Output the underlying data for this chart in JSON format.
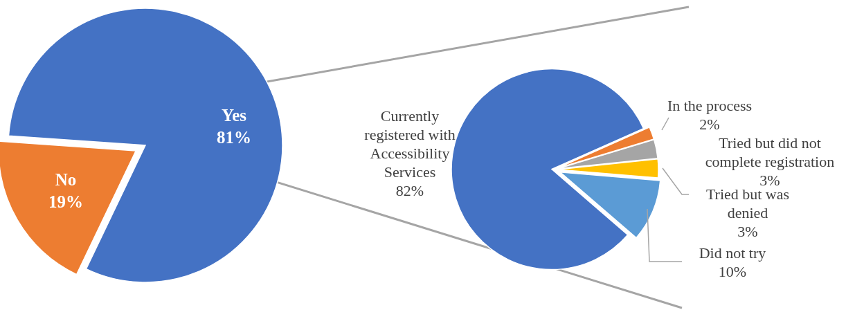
{
  "chart_data": [
    {
      "type": "pie",
      "categories": [
        "Yes",
        "No"
      ],
      "values": [
        81,
        19
      ],
      "colors": [
        "#4472c4",
        "#ed7d31"
      ],
      "value_labels": [
        "81%",
        "19%"
      ]
    },
    {
      "type": "pie",
      "categories": [
        "In the process",
        "Tried but did not complete registration",
        "Tried but was denied",
        "Did not try",
        "Currently registered with Accessibility Services"
      ],
      "values": [
        2,
        3,
        3,
        10,
        82
      ],
      "colors": [
        "#ed7d31",
        "#a5a5a5",
        "#ffc000",
        "#5b9bd5",
        "#4472c4"
      ],
      "value_labels": [
        "2%",
        "3%",
        "3%",
        "10%",
        "82%"
      ]
    }
  ]
}
